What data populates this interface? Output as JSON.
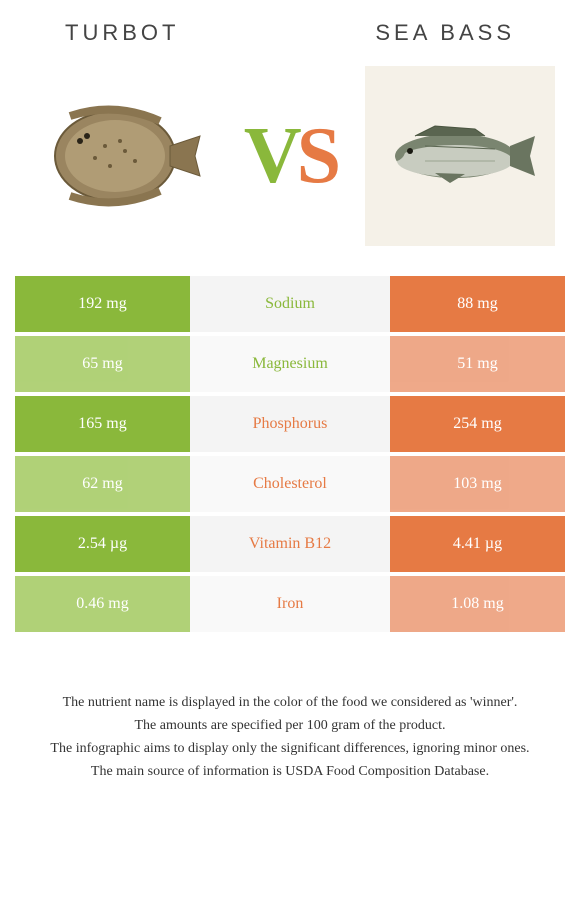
{
  "header": {
    "left": "TURBOT",
    "right": "SEA BASS"
  },
  "vs": {
    "v": "V",
    "s": "S"
  },
  "colors": {
    "green": "#8ab83b",
    "orange": "#e67a44"
  },
  "rows": [
    {
      "left": "192 mg",
      "label": "Sodium",
      "right": "88 mg",
      "winner": "left"
    },
    {
      "left": "65 mg",
      "label": "Magnesium",
      "right": "51 mg",
      "winner": "left"
    },
    {
      "left": "165 mg",
      "label": "Phosphorus",
      "right": "254 mg",
      "winner": "right"
    },
    {
      "left": "62 mg",
      "label": "Cholesterol",
      "right": "103 mg",
      "winner": "right"
    },
    {
      "left": "2.54 µg",
      "label": "Vitamin B12",
      "right": "4.41 µg",
      "winner": "right"
    },
    {
      "left": "0.46 mg",
      "label": "Iron",
      "right": "1.08 mg",
      "winner": "right"
    }
  ],
  "notes": [
    "The nutrient name is displayed in the color of the food we considered as 'winner'.",
    "The amounts are specified per 100 gram of the product.",
    "The infographic aims to display only the significant differences, ignoring minor ones.",
    "The main source of information is USDA Food Composition Database."
  ]
}
